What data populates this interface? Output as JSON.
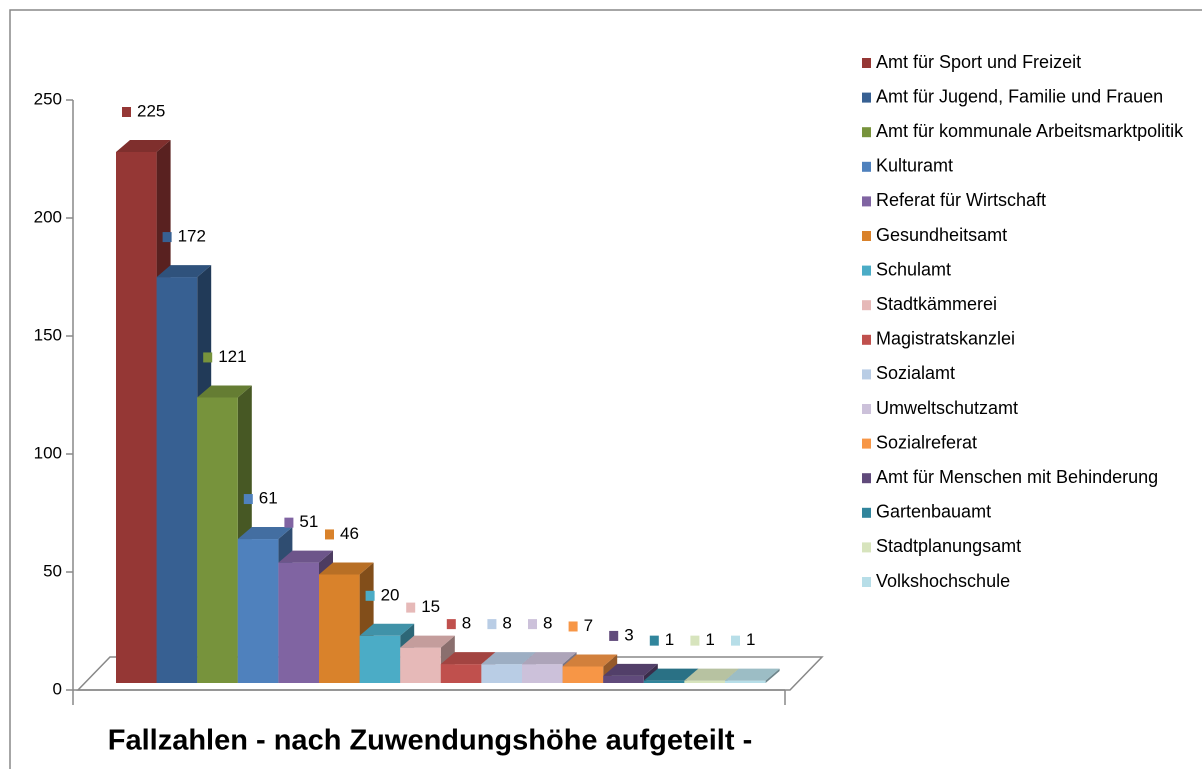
{
  "chart_data": {
    "type": "bar3d",
    "title": "Fallzahlen - nach Zuwendungshöhe aufgeteilt -",
    "categories": [
      "Amt für Sport und Freizeit",
      "Amt für Jugend, Familie und Frauen",
      "Amt für kommunale Arbeitsmarktpolitik",
      "Kulturamt",
      "Referat für Wirtschaft",
      "Gesundheitsamt",
      "Schulamt",
      "Stadtkämmerei",
      "Magistratskanzlei",
      "Sozialamt",
      "Umweltschutzamt",
      "Sozialreferat",
      "Amt für Menschen mit Behinderung",
      "Gartenbauamt",
      "Stadtplanungsamt",
      "Volkshochschule"
    ],
    "values": [
      225,
      172,
      121,
      61,
      51,
      46,
      20,
      15,
      8,
      8,
      8,
      7,
      3,
      1,
      1,
      1
    ],
    "colors": [
      "#953735",
      "#376092",
      "#77933c",
      "#4f81bd",
      "#8064a2",
      "#d9822b",
      "#4bacc6",
      "#e6b9b8",
      "#c0504d",
      "#b9cde5",
      "#ccc1da",
      "#f79646",
      "#604a7b",
      "#31859c",
      "#d7e4bd",
      "#b7dee8"
    ],
    "ylim": [
      0,
      250
    ],
    "yticks": [
      0,
      50,
      100,
      150,
      200,
      250
    ],
    "legend": "right"
  }
}
